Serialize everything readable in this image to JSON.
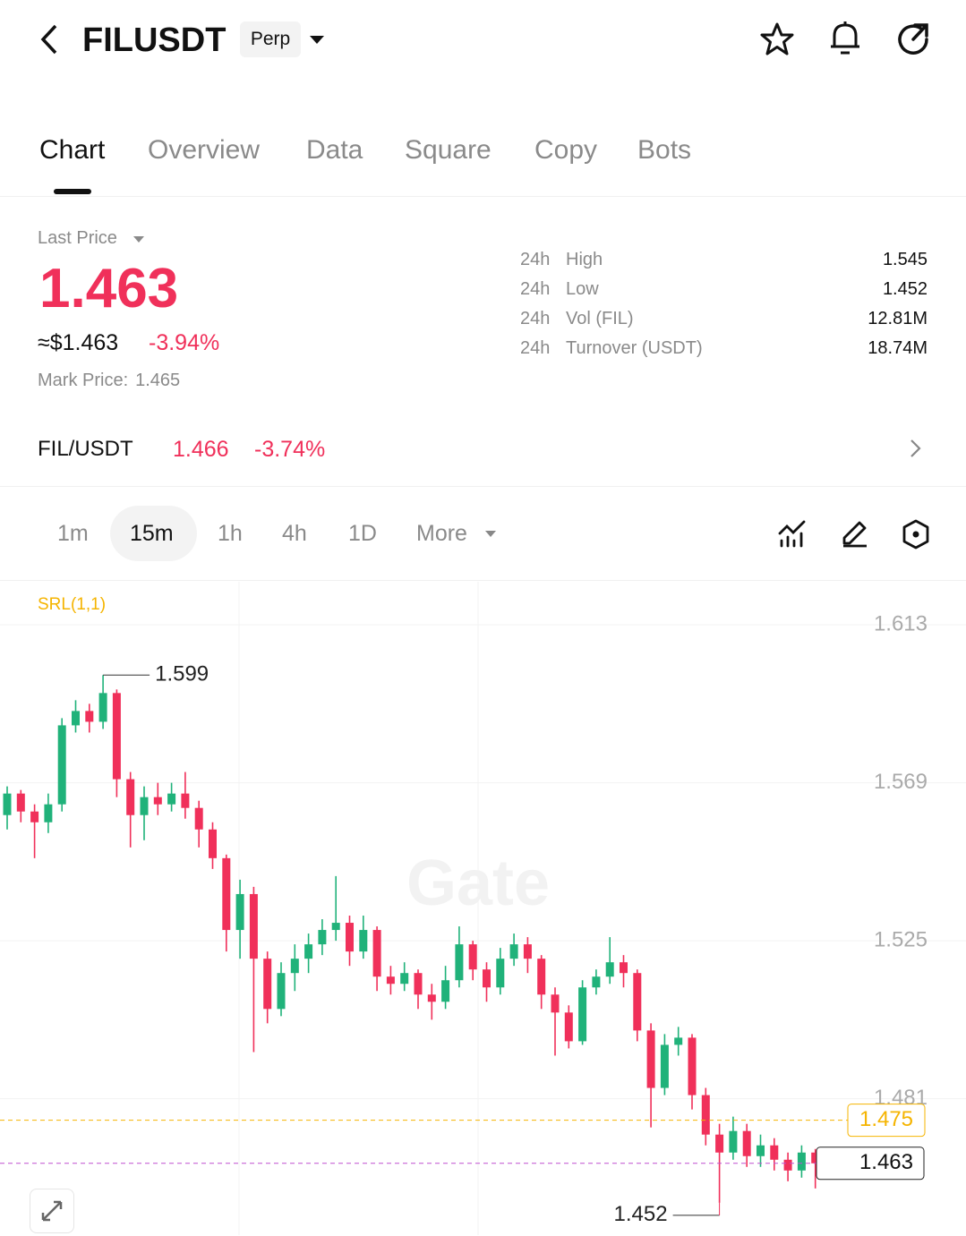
{
  "header": {
    "title": "FILUSDT",
    "badge": "Perp"
  },
  "tabs": [
    "Chart",
    "Overview",
    "Data",
    "Square",
    "Copy",
    "Bots"
  ],
  "ticker": {
    "last_price_label": "Last Price",
    "last_price": "1.463",
    "usd_price": "≈$1.463",
    "change": "-3.94%",
    "mark_price_label": "Mark Price:",
    "mark_price": "1.465"
  },
  "stats": [
    {
      "period": "24h",
      "name": "High",
      "value": "1.545"
    },
    {
      "period": "24h",
      "name": "Low",
      "value": "1.452"
    },
    {
      "period": "24h",
      "name": "Vol (FIL)",
      "value": "12.81M"
    },
    {
      "period": "24h",
      "name": "Turnover (USDT)",
      "value": "18.74M"
    }
  ],
  "spot": {
    "pair": "FIL/USDT",
    "price": "1.466",
    "change": "-3.74%"
  },
  "intervals": [
    "1m",
    "15m",
    "1h",
    "4h",
    "1D",
    "More"
  ],
  "chart_data": {
    "type": "candlestick",
    "indicator": "SRL(1,1)",
    "watermark": "Gate",
    "up_color": "#20b27a",
    "down_color": "#f0305a",
    "ylim": [
      1.443,
      1.625
    ],
    "yticks": [
      1.613,
      1.569,
      1.525,
      1.481
    ],
    "candles": [
      [
        1.56,
        1.568,
        1.556,
        1.566
      ],
      [
        1.566,
        1.567,
        1.558,
        1.561
      ],
      [
        1.561,
        1.563,
        1.548,
        1.558
      ],
      [
        1.558,
        1.566,
        1.555,
        1.563
      ],
      [
        1.563,
        1.587,
        1.561,
        1.585
      ],
      [
        1.585,
        1.592,
        1.583,
        1.589
      ],
      [
        1.589,
        1.591,
        1.583,
        1.586
      ],
      [
        1.586,
        1.599,
        1.584,
        1.594
      ],
      [
        1.594,
        1.595,
        1.565,
        1.57
      ],
      [
        1.57,
        1.572,
        1.551,
        1.56
      ],
      [
        1.56,
        1.568,
        1.553,
        1.565
      ],
      [
        1.565,
        1.569,
        1.56,
        1.563
      ],
      [
        1.563,
        1.569,
        1.561,
        1.566
      ],
      [
        1.566,
        1.572,
        1.559,
        1.562
      ],
      [
        1.562,
        1.564,
        1.551,
        1.556
      ],
      [
        1.556,
        1.558,
        1.545,
        1.548
      ],
      [
        1.548,
        1.549,
        1.522,
        1.528
      ],
      [
        1.528,
        1.542,
        1.52,
        1.538
      ],
      [
        1.538,
        1.54,
        1.494,
        1.52
      ],
      [
        1.52,
        1.522,
        1.502,
        1.506
      ],
      [
        1.506,
        1.519,
        1.504,
        1.516
      ],
      [
        1.516,
        1.524,
        1.511,
        1.52
      ],
      [
        1.52,
        1.527,
        1.516,
        1.524
      ],
      [
        1.524,
        1.531,
        1.521,
        1.528
      ],
      [
        1.528,
        1.543,
        1.525,
        1.53
      ],
      [
        1.53,
        1.532,
        1.518,
        1.522
      ],
      [
        1.522,
        1.532,
        1.52,
        1.528
      ],
      [
        1.528,
        1.529,
        1.511,
        1.515
      ],
      [
        1.515,
        1.518,
        1.51,
        1.513
      ],
      [
        1.513,
        1.519,
        1.511,
        1.516
      ],
      [
        1.516,
        1.517,
        1.506,
        1.51
      ],
      [
        1.51,
        1.513,
        1.503,
        1.508
      ],
      [
        1.508,
        1.518,
        1.506,
        1.514
      ],
      [
        1.514,
        1.529,
        1.512,
        1.524
      ],
      [
        1.524,
        1.525,
        1.514,
        1.517
      ],
      [
        1.517,
        1.519,
        1.508,
        1.512
      ],
      [
        1.512,
        1.523,
        1.51,
        1.52
      ],
      [
        1.52,
        1.527,
        1.518,
        1.524
      ],
      [
        1.524,
        1.526,
        1.516,
        1.52
      ],
      [
        1.52,
        1.521,
        1.506,
        1.51
      ],
      [
        1.51,
        1.512,
        1.493,
        1.505
      ],
      [
        1.505,
        1.507,
        1.495,
        1.497
      ],
      [
        1.497,
        1.514,
        1.496,
        1.512
      ],
      [
        1.512,
        1.517,
        1.51,
        1.515
      ],
      [
        1.515,
        1.526,
        1.513,
        1.519
      ],
      [
        1.519,
        1.521,
        1.512,
        1.516
      ],
      [
        1.516,
        1.517,
        1.497,
        1.5
      ],
      [
        1.5,
        1.502,
        1.473,
        1.484
      ],
      [
        1.484,
        1.499,
        1.482,
        1.496
      ],
      [
        1.496,
        1.501,
        1.493,
        1.498
      ],
      [
        1.498,
        1.499,
        1.478,
        1.482
      ],
      [
        1.482,
        1.484,
        1.468,
        1.471
      ],
      [
        1.471,
        1.474,
        1.452,
        1.466
      ],
      [
        1.466,
        1.476,
        1.464,
        1.472
      ],
      [
        1.472,
        1.474,
        1.462,
        1.465
      ],
      [
        1.465,
        1.471,
        1.462,
        1.468
      ],
      [
        1.468,
        1.47,
        1.461,
        1.464
      ],
      [
        1.464,
        1.466,
        1.458,
        1.461
      ],
      [
        1.461,
        1.468,
        1.459,
        1.466
      ],
      [
        1.466,
        1.467,
        1.456,
        1.463
      ]
    ],
    "price_lines": [
      {
        "value": 1.475,
        "color": "#f5b400"
      }
    ],
    "last_line_color": "#c04fd0"
  }
}
